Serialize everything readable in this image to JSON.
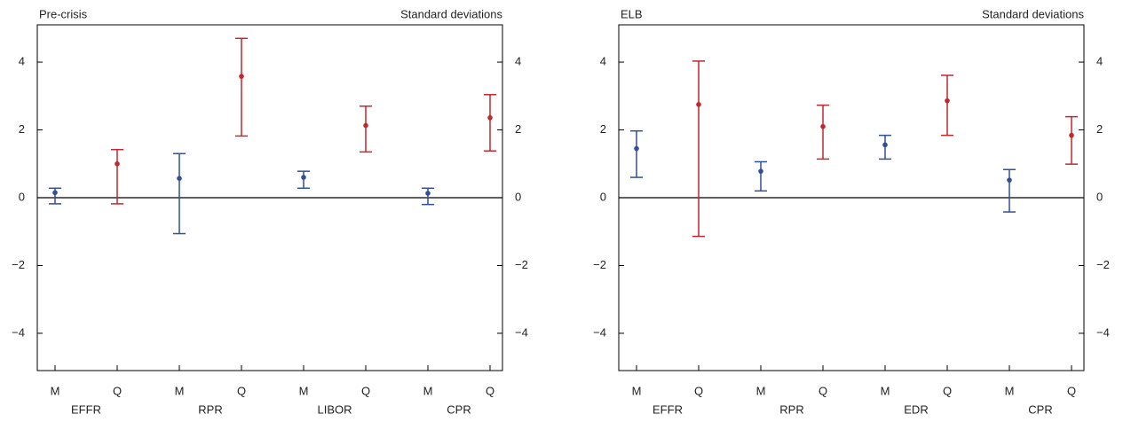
{
  "chart_data": [
    {
      "type": "errorbar",
      "title": "Pre-crisis",
      "y_label": "Standard deviations",
      "categories": [
        "M",
        "Q",
        "M",
        "Q",
        "M",
        "Q",
        "M",
        "Q"
      ],
      "groups": [
        "EFFR",
        "RPR",
        "LIBOR",
        "CPR"
      ],
      "values": [
        0.15,
        1.0,
        0.57,
        3.58,
        0.6,
        2.13,
        0.13,
        2.36
      ],
      "lower": [
        -0.18,
        -0.18,
        -1.06,
        1.82,
        0.28,
        1.35,
        -0.2,
        1.38
      ],
      "upper": [
        0.28,
        1.42,
        1.3,
        4.7,
        0.78,
        2.7,
        0.28,
        3.04
      ],
      "colors": [
        "#2f4f96",
        "#c1272d",
        "#2f4f96",
        "#c1272d",
        "#2f4f96",
        "#c1272d",
        "#2f4f96",
        "#c1272d"
      ],
      "ylim": [
        -5.1,
        5.1
      ],
      "yticks": [
        {
          "value": -4,
          "label": "−4"
        },
        {
          "value": -2,
          "label": "−2"
        },
        0,
        2,
        4
      ]
    },
    {
      "type": "errorbar",
      "title": "ELB",
      "y_label": "Standard deviations",
      "categories": [
        "M",
        "Q",
        "M",
        "Q",
        "M",
        "Q",
        "M",
        "Q"
      ],
      "groups": [
        "EFFR",
        "RPR",
        "EDR",
        "CPR"
      ],
      "values": [
        1.45,
        2.75,
        0.78,
        2.1,
        1.56,
        2.86,
        0.52,
        1.84
      ],
      "lower": [
        0.6,
        -1.14,
        0.2,
        1.14,
        1.14,
        1.84,
        -0.42,
        0.99
      ],
      "upper": [
        1.97,
        4.03,
        1.06,
        2.73,
        1.84,
        3.61,
        0.83,
        2.39
      ],
      "colors": [
        "#2f4f96",
        "#c1272d",
        "#2f4f96",
        "#c1272d",
        "#2f4f96",
        "#c1272d",
        "#2f4f96",
        "#c1272d"
      ],
      "ylim": [
        -5.1,
        5.1
      ],
      "yticks": [
        {
          "value": -4,
          "label": "−4"
        },
        {
          "value": -2,
          "label": "−2"
        },
        0,
        2,
        4
      ]
    }
  ]
}
